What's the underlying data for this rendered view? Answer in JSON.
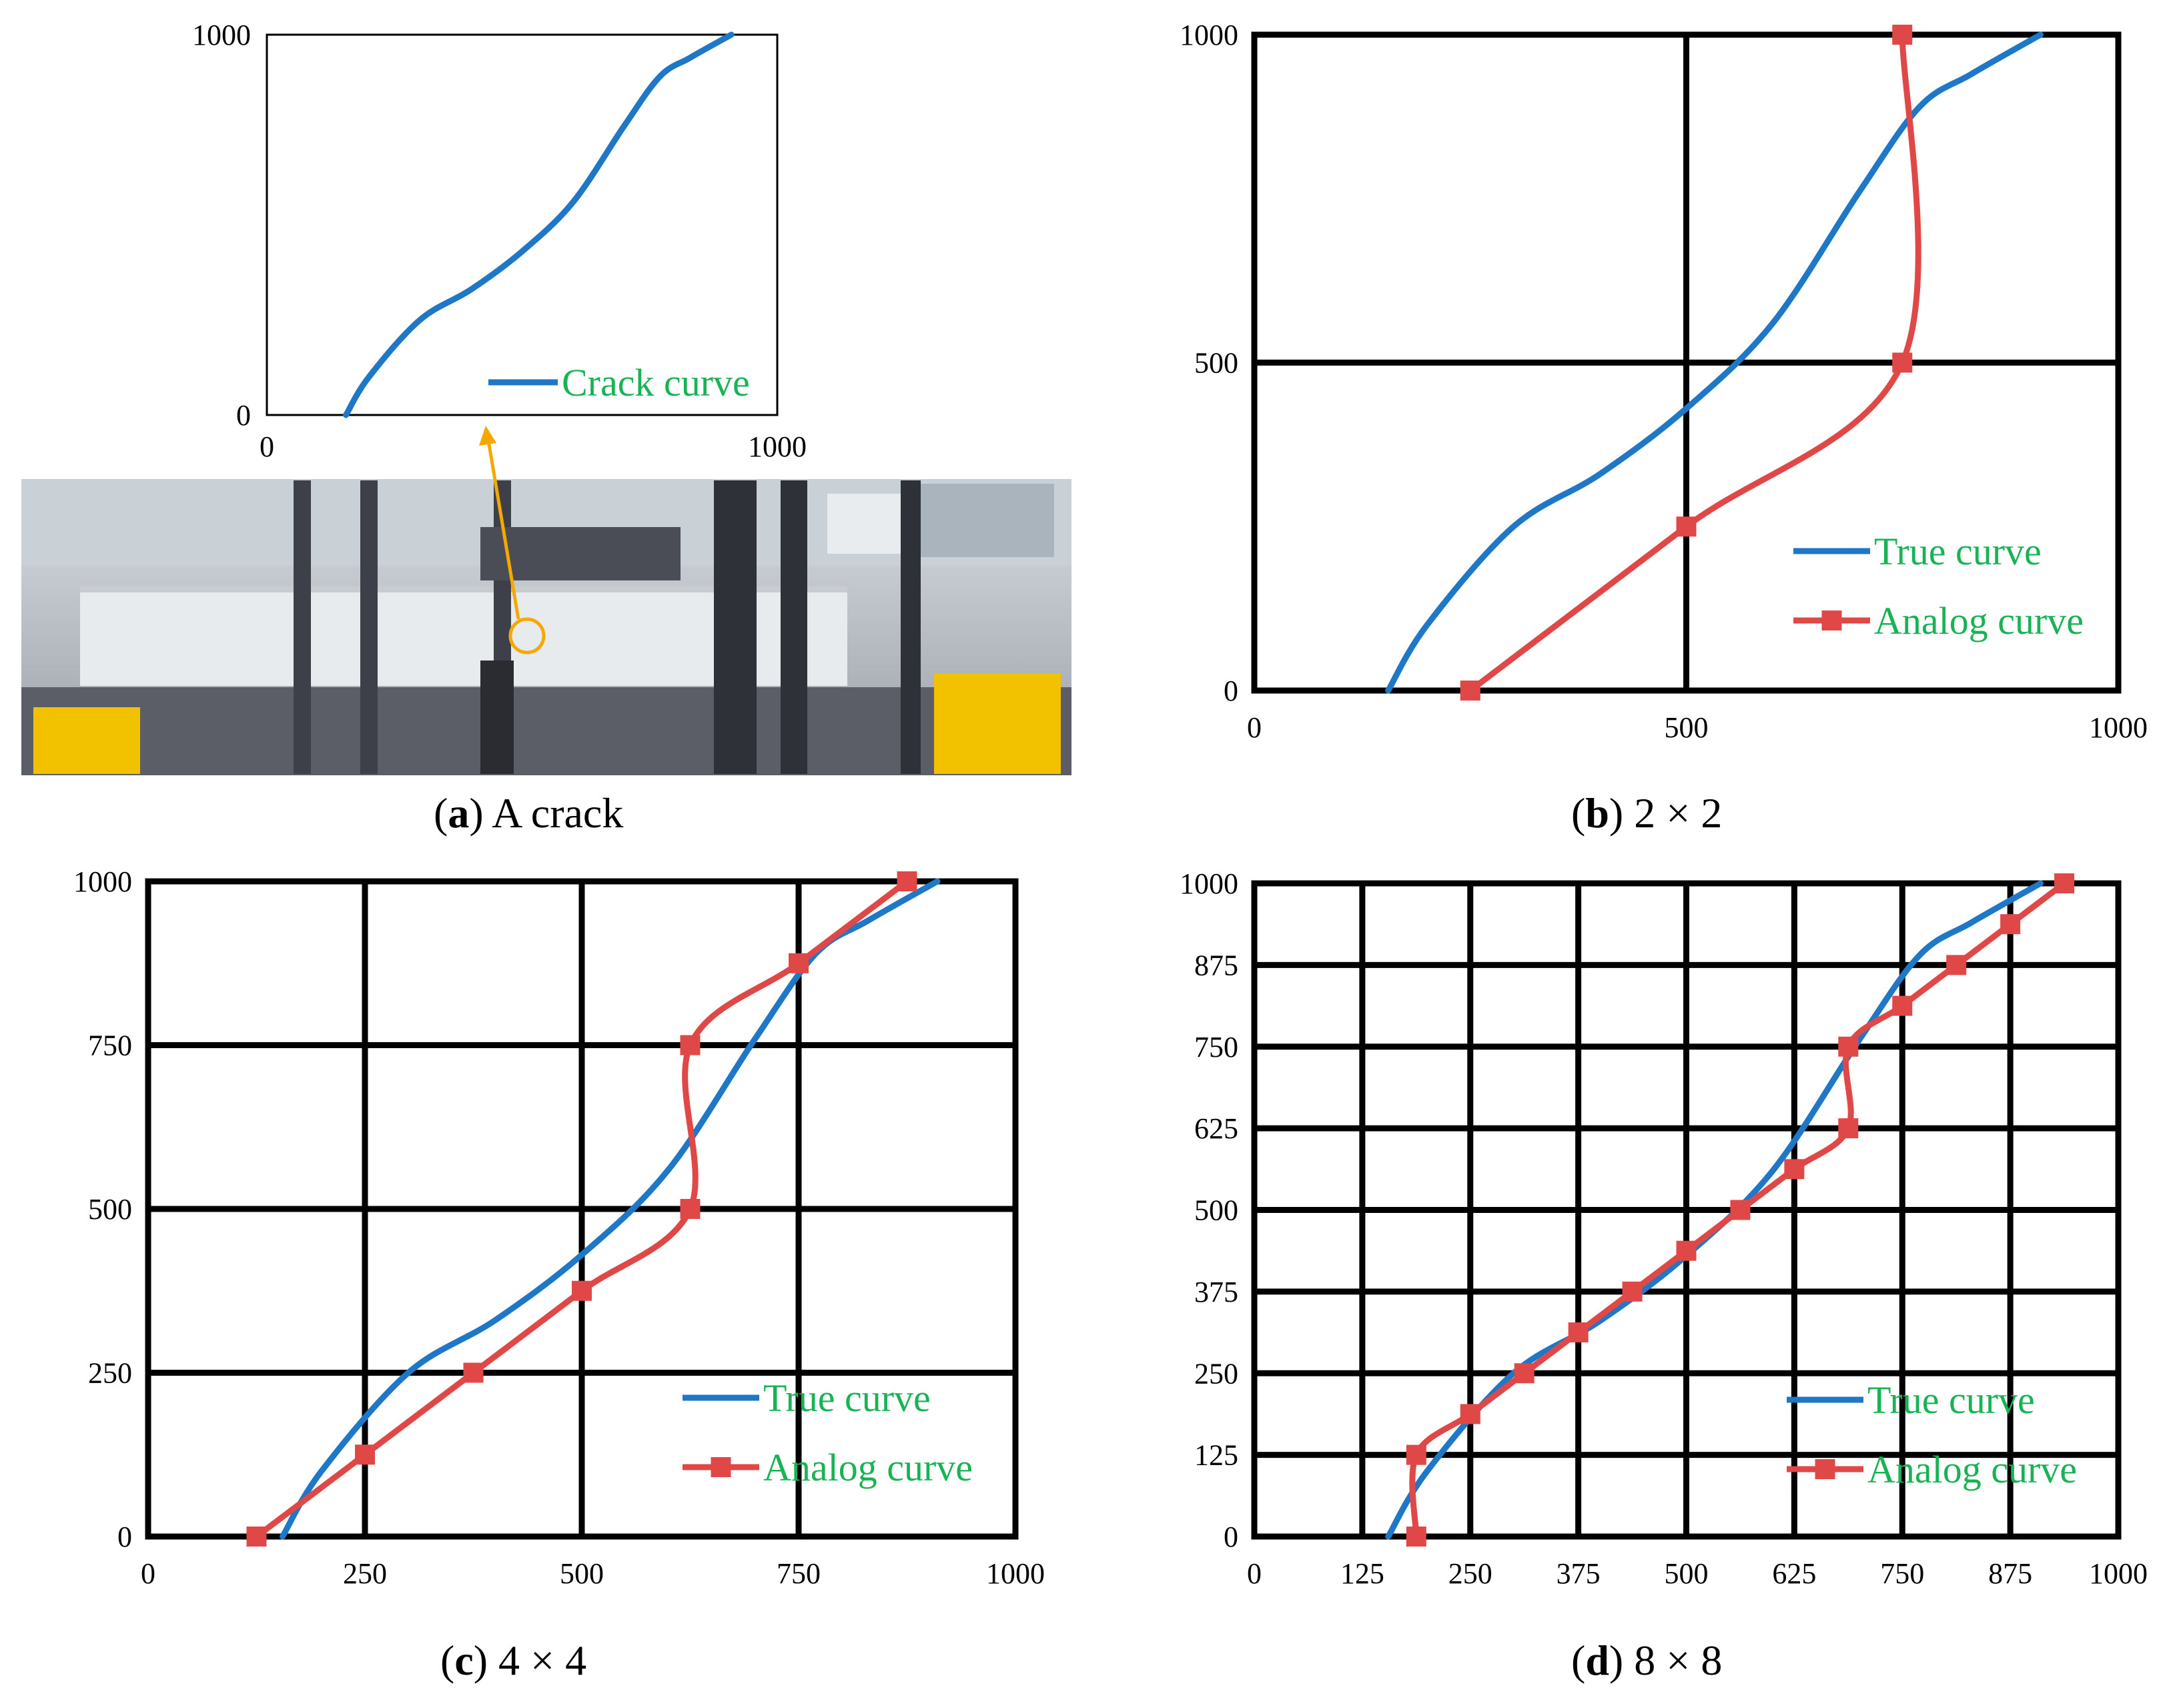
{
  "colors": {
    "true_curve": "#1f77c8",
    "analog_curve": "#e04848",
    "grid": "#000000",
    "legend_text": "#19b356",
    "callout": "#f5a900"
  },
  "photo": {
    "description_icon": "photo-icon"
  },
  "chart_data": [
    {
      "id": "a",
      "type": "line",
      "caption_letter": "a",
      "caption_rest": " A crack",
      "xlim": [
        0,
        1000
      ],
      "ylim": [
        0,
        1000
      ],
      "x_ticks": [
        "0",
        "1000"
      ],
      "y_ticks": [
        "0",
        "1000"
      ],
      "legend": {
        "position": "bottom-right"
      },
      "series": [
        {
          "name": "Crack curve",
          "role": "true",
          "x": [
            155,
            200,
            300,
            400,
            500,
            600,
            700,
            770,
            830,
            910
          ],
          "y": [
            0,
            100,
            250,
            330,
            430,
            560,
            760,
            890,
            940,
            1000
          ]
        }
      ]
    },
    {
      "id": "b",
      "type": "line",
      "caption_letter": "b",
      "caption_rest": " 2 × 2",
      "xlim": [
        0,
        1000
      ],
      "ylim": [
        0,
        1000
      ],
      "x_ticks": [
        "0",
        "500",
        "1000"
      ],
      "y_ticks": [
        "0",
        "500",
        "1000"
      ],
      "grid_divisions": 2,
      "legend": {
        "position": "bottom-right"
      },
      "series": [
        {
          "name": "True curve",
          "role": "true",
          "x": [
            155,
            200,
            300,
            400,
            500,
            600,
            700,
            770,
            830,
            910
          ],
          "y": [
            0,
            100,
            250,
            330,
            430,
            560,
            760,
            890,
            940,
            1000
          ]
        },
        {
          "name": "Analog curve",
          "role": "analog",
          "markers": true,
          "x": [
            250,
            500,
            750,
            750
          ],
          "y": [
            0,
            250,
            500,
            1000
          ]
        }
      ]
    },
    {
      "id": "c",
      "type": "line",
      "caption_letter": "c",
      "caption_rest": " 4 × 4",
      "xlim": [
        0,
        1000
      ],
      "ylim": [
        0,
        1000
      ],
      "x_ticks": [
        "0",
        "250",
        "500",
        "750",
        "1000"
      ],
      "y_ticks": [
        "0",
        "250",
        "500",
        "750",
        "1000"
      ],
      "grid_divisions": 4,
      "legend": {
        "position": "bottom-right"
      },
      "series": [
        {
          "name": "True curve",
          "role": "true",
          "x": [
            155,
            200,
            300,
            400,
            500,
            600,
            700,
            770,
            830,
            910
          ],
          "y": [
            0,
            100,
            250,
            330,
            430,
            560,
            760,
            890,
            940,
            1000
          ]
        },
        {
          "name": "Analog curve",
          "role": "analog",
          "markers": true,
          "x": [
            125,
            250,
            375,
            500,
            625,
            625,
            750,
            875
          ],
          "y": [
            0,
            125,
            250,
            375,
            500,
            750,
            875,
            1000
          ]
        }
      ]
    },
    {
      "id": "d",
      "type": "line",
      "caption_letter": "d",
      "caption_rest": " 8 × 8",
      "xlim": [
        0,
        1000
      ],
      "ylim": [
        0,
        1000
      ],
      "x_ticks": [
        "0",
        "125",
        "250",
        "375",
        "500",
        "625",
        "750",
        "875",
        "1000"
      ],
      "y_ticks": [
        "0",
        "125",
        "250",
        "375",
        "500",
        "625",
        "750",
        "875",
        "1000"
      ],
      "grid_divisions": 8,
      "legend": {
        "position": "bottom-right"
      },
      "series": [
        {
          "name": "True curve",
          "role": "true",
          "x": [
            155,
            200,
            300,
            400,
            500,
            600,
            700,
            770,
            830,
            910
          ],
          "y": [
            0,
            100,
            250,
            330,
            430,
            560,
            760,
            890,
            940,
            1000
          ]
        },
        {
          "name": "Analog curve",
          "role": "analog",
          "markers": true,
          "x": [
            187.5,
            187.5,
            250,
            312.5,
            375,
            437.5,
            500,
            562.5,
            625,
            687.5,
            687.5,
            750,
            812.5,
            875,
            937.5
          ],
          "y": [
            0,
            125,
            187.5,
            250,
            312.5,
            375,
            437.5,
            500,
            562.5,
            625,
            750,
            812.5,
            875,
            937.5,
            1000
          ]
        }
      ]
    }
  ]
}
